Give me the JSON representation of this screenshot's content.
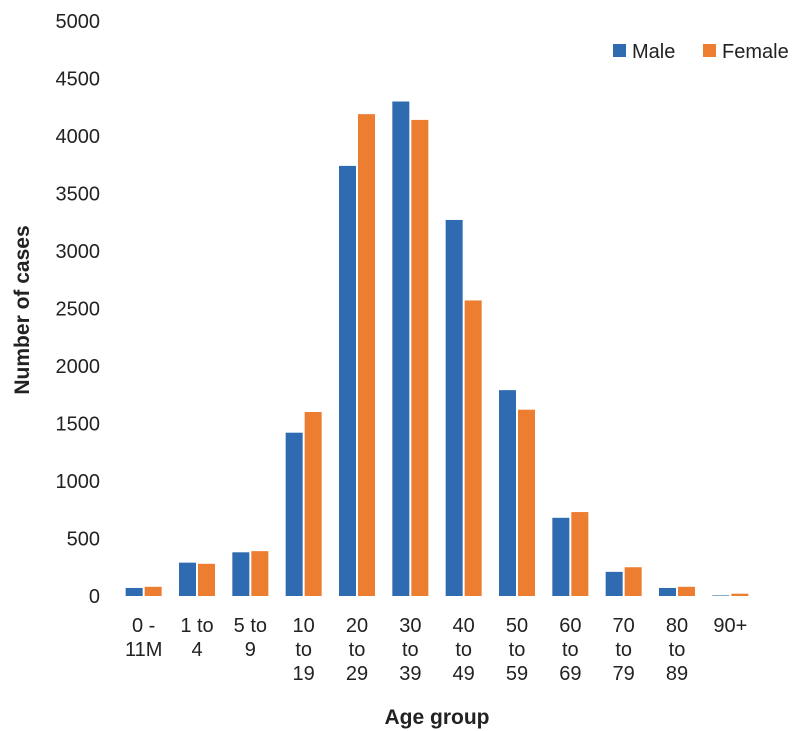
{
  "chart_data": {
    "type": "bar",
    "xlabel": "Age group",
    "ylabel": "Number of cases",
    "ylim": [
      0,
      5000
    ],
    "yticks": [
      0,
      500,
      1000,
      1500,
      2000,
      2500,
      3000,
      3500,
      4000,
      4500,
      5000
    ],
    "grid": false,
    "legend_position": "top-right",
    "categories": [
      [
        "0 -",
        "11M"
      ],
      [
        "1 to",
        "4"
      ],
      [
        "5 to",
        "9"
      ],
      [
        "10",
        "to",
        "19"
      ],
      [
        "20",
        "to",
        "29"
      ],
      [
        "30",
        "to",
        "39"
      ],
      [
        "40",
        "to",
        "49"
      ],
      [
        "50",
        "to",
        "59"
      ],
      [
        "60",
        "to",
        "69"
      ],
      [
        "70",
        "to",
        "79"
      ],
      [
        "80",
        "to",
        "89"
      ],
      [
        "90+"
      ]
    ],
    "series": [
      {
        "name": "Male",
        "color": "#2e6bb0",
        "values": [
          70,
          290,
          380,
          1420,
          3740,
          4300,
          3270,
          1790,
          680,
          210,
          70,
          5
        ]
      },
      {
        "name": "Female",
        "color": "#ed7d31",
        "values": [
          80,
          280,
          390,
          1600,
          4190,
          4140,
          2570,
          1620,
          730,
          250,
          80,
          20
        ]
      }
    ]
  }
}
